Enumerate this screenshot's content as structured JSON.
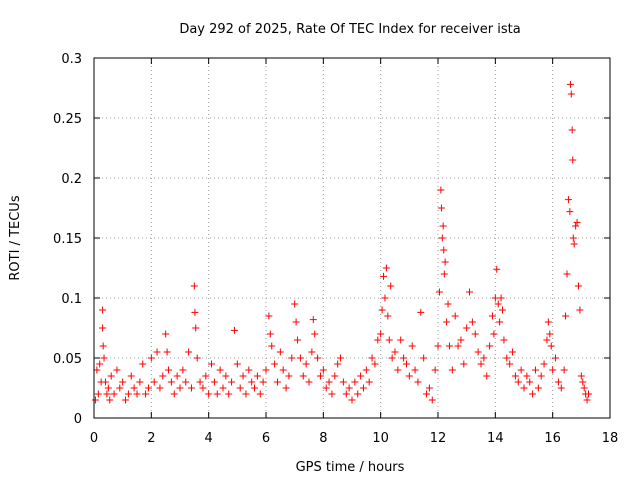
{
  "chart_data": {
    "type": "scatter",
    "title": "Day 292 of 2025, Rate Of TEC Index for receiver ista",
    "xlabel": "GPS time / hours",
    "ylabel": "ROTI / TECUs",
    "xlim": [
      0,
      18
    ],
    "ylim": [
      0,
      0.3
    ],
    "xticks": [
      0,
      2,
      4,
      6,
      8,
      10,
      12,
      14,
      16,
      18
    ],
    "yticks": [
      0,
      0.05,
      0.1,
      0.15,
      0.2,
      0.25,
      0.3
    ],
    "xtick_labels": [
      "0",
      "2",
      "4",
      "6",
      "8",
      "10",
      "12",
      "14",
      "16",
      "18"
    ],
    "ytick_labels": [
      "0",
      "0.05",
      "0.1",
      "0.15",
      "0.2",
      "0.25",
      "0.3"
    ],
    "grid": true,
    "marker": "+",
    "colors": {
      "series": "#ff0000",
      "grid": "#a0a0a0",
      "axis": "#000000"
    },
    "series": [
      {
        "name": "ROTI",
        "x": [
          0.05,
          0.1,
          0.15,
          0.2,
          0.25,
          0.3,
          0.3,
          0.32,
          0.35,
          0.4,
          0.45,
          0.5,
          0.55,
          0.6,
          0.7,
          0.8,
          0.9,
          1.0,
          1.1,
          1.2,
          1.3,
          1.4,
          1.5,
          1.6,
          1.7,
          1.8,
          1.9,
          2.0,
          2.1,
          2.2,
          2.3,
          2.4,
          2.5,
          2.55,
          2.6,
          2.7,
          2.8,
          2.9,
          3.0,
          3.1,
          3.2,
          3.3,
          3.4,
          3.5,
          3.52,
          3.55,
          3.6,
          3.7,
          3.8,
          3.9,
          4.0,
          4.1,
          4.2,
          4.3,
          4.4,
          4.5,
          4.6,
          4.7,
          4.8,
          4.9,
          5.0,
          5.1,
          5.2,
          5.3,
          5.4,
          5.5,
          5.6,
          5.7,
          5.8,
          5.9,
          6.0,
          6.1,
          6.15,
          6.2,
          6.3,
          6.4,
          6.5,
          6.6,
          6.7,
          6.8,
          6.9,
          7.0,
          7.05,
          7.1,
          7.2,
          7.3,
          7.4,
          7.5,
          7.6,
          7.65,
          7.7,
          7.8,
          7.9,
          8.0,
          8.1,
          8.2,
          8.3,
          8.4,
          8.5,
          8.6,
          8.7,
          8.8,
          8.9,
          9.0,
          9.1,
          9.2,
          9.3,
          9.4,
          9.5,
          9.6,
          9.7,
          9.8,
          9.9,
          10.0,
          10.05,
          10.1,
          10.15,
          10.2,
          10.25,
          10.3,
          10.35,
          10.4,
          10.5,
          10.6,
          10.7,
          10.8,
          10.9,
          11.0,
          11.1,
          11.2,
          11.3,
          11.4,
          11.5,
          11.6,
          11.7,
          11.8,
          11.9,
          12.0,
          12.05,
          12.1,
          12.12,
          12.15,
          12.18,
          12.2,
          12.22,
          12.25,
          12.3,
          12.35,
          12.4,
          12.5,
          12.6,
          12.7,
          12.8,
          12.9,
          13.0,
          13.1,
          13.2,
          13.3,
          13.4,
          13.5,
          13.6,
          13.7,
          13.8,
          13.9,
          13.95,
          14.0,
          14.05,
          14.1,
          14.15,
          14.2,
          14.25,
          14.3,
          14.4,
          14.5,
          14.6,
          14.7,
          14.8,
          14.9,
          15.0,
          15.1,
          15.2,
          15.3,
          15.4,
          15.5,
          15.6,
          15.7,
          15.8,
          15.85,
          15.9,
          15.95,
          16.0,
          16.1,
          16.2,
          16.3,
          16.4,
          16.45,
          16.5,
          16.55,
          16.6,
          16.62,
          16.65,
          16.68,
          16.7,
          16.72,
          16.75,
          16.8,
          16.85,
          16.9,
          16.95,
          17.0,
          17.05,
          17.1,
          17.15,
          17.2,
          17.25
        ],
        "y": [
          0.015,
          0.04,
          0.02,
          0.045,
          0.03,
          0.09,
          0.075,
          0.06,
          0.05,
          0.03,
          0.02,
          0.025,
          0.015,
          0.035,
          0.02,
          0.04,
          0.025,
          0.03,
          0.015,
          0.02,
          0.035,
          0.025,
          0.02,
          0.03,
          0.045,
          0.02,
          0.025,
          0.05,
          0.03,
          0.055,
          0.025,
          0.035,
          0.07,
          0.055,
          0.04,
          0.03,
          0.02,
          0.035,
          0.025,
          0.04,
          0.03,
          0.055,
          0.025,
          0.11,
          0.088,
          0.075,
          0.05,
          0.03,
          0.025,
          0.035,
          0.02,
          0.045,
          0.03,
          0.02,
          0.04,
          0.025,
          0.035,
          0.02,
          0.03,
          0.073,
          0.045,
          0.025,
          0.035,
          0.02,
          0.04,
          0.03,
          0.025,
          0.035,
          0.02,
          0.03,
          0.04,
          0.085,
          0.07,
          0.06,
          0.045,
          0.03,
          0.055,
          0.04,
          0.025,
          0.035,
          0.05,
          0.095,
          0.08,
          0.065,
          0.05,
          0.035,
          0.045,
          0.03,
          0.055,
          0.082,
          0.07,
          0.05,
          0.035,
          0.04,
          0.025,
          0.03,
          0.02,
          0.035,
          0.045,
          0.05,
          0.03,
          0.02,
          0.025,
          0.015,
          0.03,
          0.02,
          0.035,
          0.025,
          0.04,
          0.03,
          0.05,
          0.045,
          0.065,
          0.07,
          0.09,
          0.118,
          0.1,
          0.125,
          0.085,
          0.065,
          0.11,
          0.05,
          0.055,
          0.04,
          0.065,
          0.05,
          0.045,
          0.035,
          0.06,
          0.04,
          0.03,
          0.088,
          0.05,
          0.02,
          0.025,
          0.015,
          0.04,
          0.06,
          0.105,
          0.19,
          0.175,
          0.15,
          0.16,
          0.14,
          0.12,
          0.13,
          0.08,
          0.095,
          0.06,
          0.04,
          0.085,
          0.06,
          0.065,
          0.045,
          0.075,
          0.105,
          0.08,
          0.07,
          0.055,
          0.045,
          0.05,
          0.035,
          0.06,
          0.085,
          0.07,
          0.1,
          0.124,
          0.095,
          0.08,
          0.1,
          0.09,
          0.065,
          0.05,
          0.045,
          0.055,
          0.035,
          0.03,
          0.04,
          0.025,
          0.035,
          0.03,
          0.02,
          0.04,
          0.025,
          0.035,
          0.045,
          0.065,
          0.08,
          0.07,
          0.06,
          0.04,
          0.05,
          0.03,
          0.025,
          0.04,
          0.085,
          0.12,
          0.182,
          0.172,
          0.278,
          0.27,
          0.24,
          0.215,
          0.15,
          0.145,
          0.16,
          0.163,
          0.11,
          0.09,
          0.035,
          0.03,
          0.025,
          0.02,
          0.015,
          0.02
        ]
      }
    ]
  }
}
